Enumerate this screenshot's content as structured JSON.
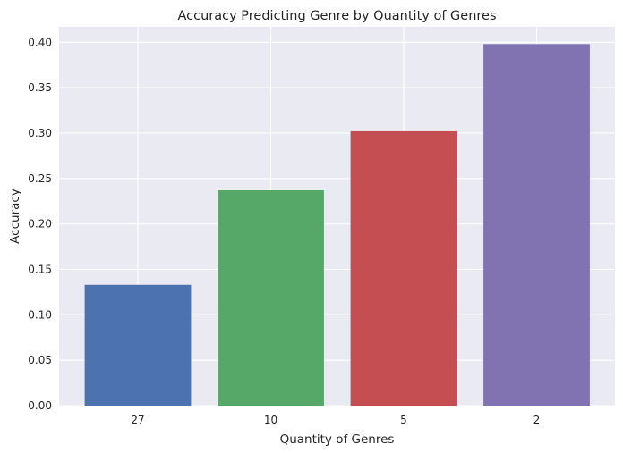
{
  "chart_data": {
    "type": "bar",
    "title": "Accuracy Predicting Genre by Quantity of Genres",
    "xlabel": "Quantity of Genres",
    "ylabel": "Accuracy",
    "categories": [
      "27",
      "10",
      "5",
      "2"
    ],
    "values": [
      0.133,
      0.237,
      0.302,
      0.398
    ],
    "colors": [
      "#4c72b0",
      "#55a868",
      "#c44e52",
      "#8172b2"
    ],
    "ylim": [
      0,
      0.417
    ],
    "yticks": [
      0.0,
      0.05,
      0.1,
      0.15,
      0.2,
      0.25,
      0.3,
      0.35,
      0.4
    ],
    "ytick_labels": [
      "0.00",
      "0.05",
      "0.10",
      "0.15",
      "0.20",
      "0.25",
      "0.30",
      "0.35",
      "0.40"
    ],
    "grid": true,
    "background": "#eaeaf2",
    "grid_color": "#ffffff"
  }
}
